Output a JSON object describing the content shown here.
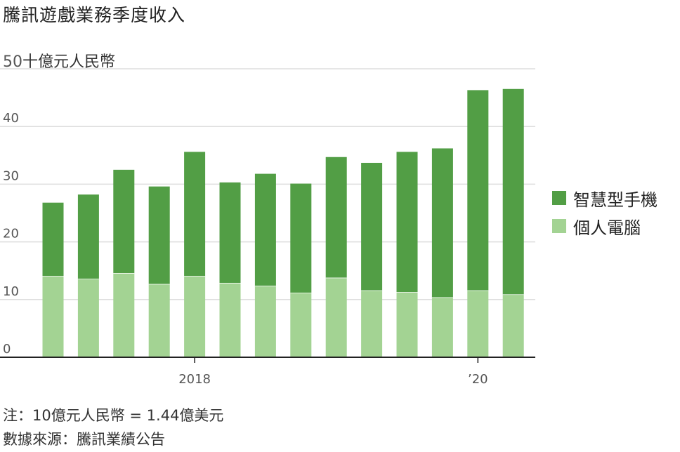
{
  "title": "騰訊遊戲業務季度收入",
  "unit_label": "十億元人民幣",
  "note": "注：10億元人民幣 = 1.44億美元",
  "source": "數據來源：騰訊業績公告",
  "colors": {
    "smartphone": "#529e45",
    "pc": "#a3d393",
    "grid": "#dddddd",
    "axis": "#222222"
  },
  "chart_data": {
    "type": "bar",
    "stacked": true,
    "ylim": [
      0,
      50
    ],
    "yticks": [
      0,
      10,
      20,
      30,
      40,
      50
    ],
    "x_tick_labels": [
      {
        "index": 4,
        "label": "2018"
      },
      {
        "index": 12,
        "label": "’20"
      }
    ],
    "legend_position": "right",
    "series": [
      {
        "name": "個人電腦",
        "color": "#a3d393",
        "values": [
          14.1,
          13.6,
          14.6,
          12.7,
          14.1,
          12.9,
          12.4,
          11.2,
          13.8,
          11.6,
          11.3,
          10.4,
          11.6,
          10.9
        ]
      },
      {
        "name": "智慧型手機",
        "color": "#529e45",
        "values": [
          12.7,
          14.6,
          17.9,
          16.9,
          21.5,
          17.4,
          19.4,
          18.9,
          20.9,
          22.1,
          24.3,
          25.8,
          34.7,
          35.6
        ]
      }
    ]
  }
}
